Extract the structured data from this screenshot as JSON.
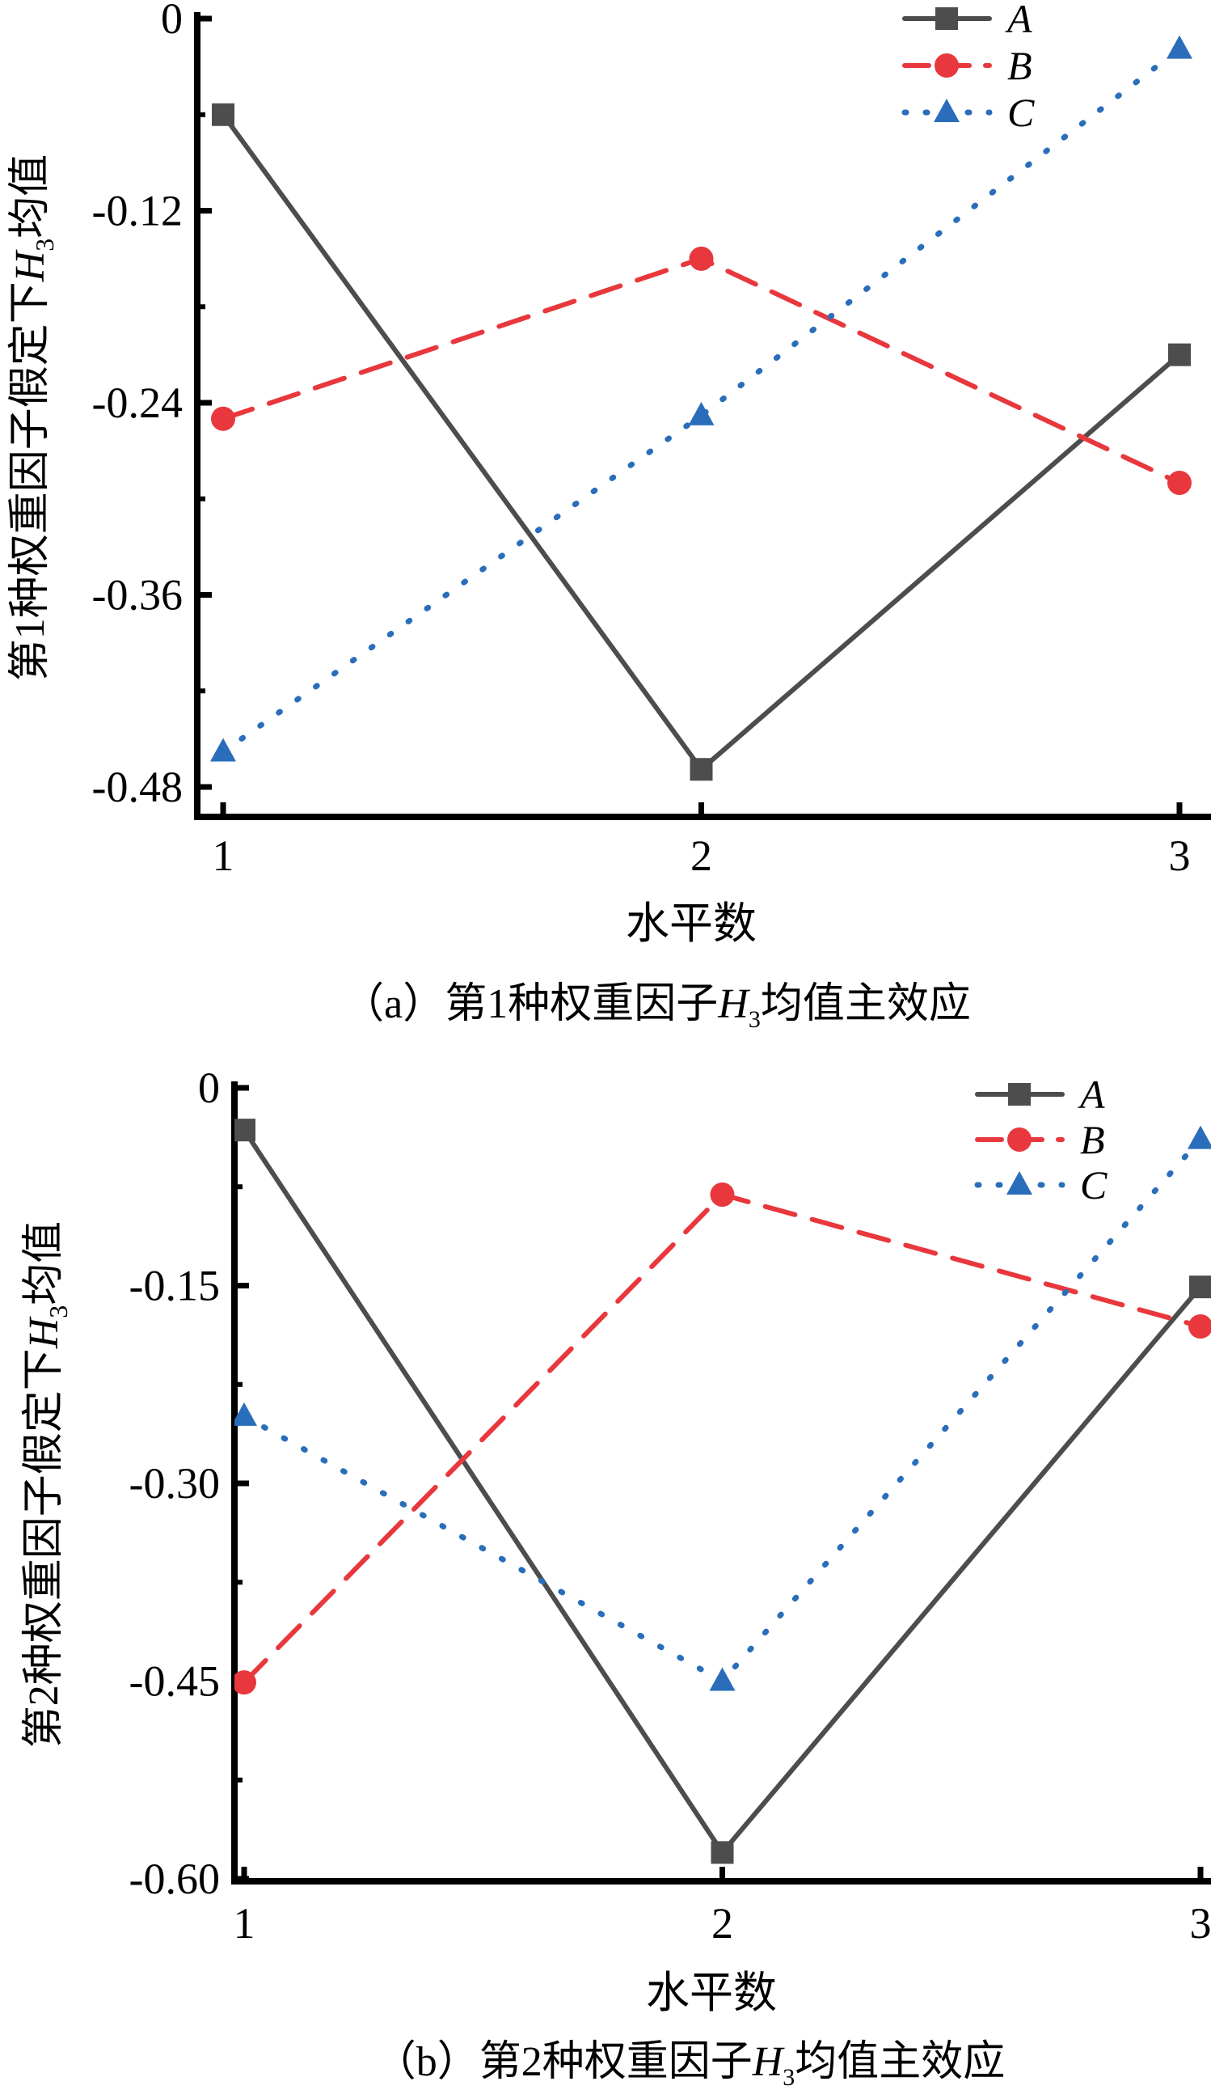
{
  "colors": {
    "A": "#4d4d4d",
    "B": "#e8383d",
    "C": "#2a6ebb",
    "axis": "#000000"
  },
  "chart_data": [
    {
      "type": "line",
      "caption": "（a）第1种权重因子H3均值主效应",
      "caption_parts": {
        "prefix": "（a）第1种权重因子",
        "var": "H",
        "sub": "3",
        "suffix": "均值主效应"
      },
      "xlabel": "水平数",
      "ylabel": "第1种权重因子假定下H3均值",
      "ylabel_parts": {
        "prefix": "第1种权重因子假定下",
        "var": "H",
        "sub": "3",
        "suffix": "均值"
      },
      "x": [
        1,
        2,
        3
      ],
      "x_tick_labels": [
        "1",
        "2",
        "3"
      ],
      "ylim": [
        -0.5,
        0
      ],
      "y_ticks": [
        0,
        -0.12,
        -0.24,
        -0.36,
        -0.48
      ],
      "y_tick_labels": [
        "0",
        "-0.12",
        "-0.24",
        "-0.36",
        "-0.48"
      ],
      "legend_position": "top-right",
      "series": [
        {
          "name": "A",
          "marker": "square",
          "line": "solid",
          "values": [
            -0.06,
            -0.469,
            -0.21
          ]
        },
        {
          "name": "B",
          "marker": "circle",
          "line": "dashed",
          "values": [
            -0.25,
            -0.15,
            -0.29
          ]
        },
        {
          "name": "C",
          "marker": "triangle",
          "line": "dotted",
          "values": [
            -0.458,
            -0.248,
            -0.019
          ]
        }
      ]
    },
    {
      "type": "line",
      "caption": "（b）第2种权重因子H3均值主效应",
      "caption_parts": {
        "prefix": "（b）第2种权重因子",
        "var": "H",
        "sub": "3",
        "suffix": "均值主效应"
      },
      "xlabel": "水平数",
      "ylabel": "第2种权重因子假定下H3均值",
      "ylabel_parts": {
        "prefix": "第2种权重因子假定下",
        "var": "H",
        "sub": "3",
        "suffix": "均值"
      },
      "x": [
        1,
        2,
        3
      ],
      "x_tick_labels": [
        "1",
        "2",
        "3"
      ],
      "ylim": [
        -0.6,
        0
      ],
      "y_ticks": [
        0,
        -0.15,
        -0.3,
        -0.45,
        -0.6
      ],
      "y_tick_labels": [
        "0",
        "-0.15",
        "-0.30",
        "-0.45",
        "-0.60"
      ],
      "legend_position": "top-right",
      "series": [
        {
          "name": "A",
          "marker": "square",
          "line": "solid",
          "values": [
            -0.032,
            -0.58,
            -0.151
          ]
        },
        {
          "name": "B",
          "marker": "circle",
          "line": "dashed",
          "values": [
            -0.451,
            -0.081,
            -0.181
          ]
        },
        {
          "name": "C",
          "marker": "triangle",
          "line": "dotted",
          "values": [
            -0.249,
            -0.45,
            -0.039
          ]
        }
      ]
    }
  ]
}
